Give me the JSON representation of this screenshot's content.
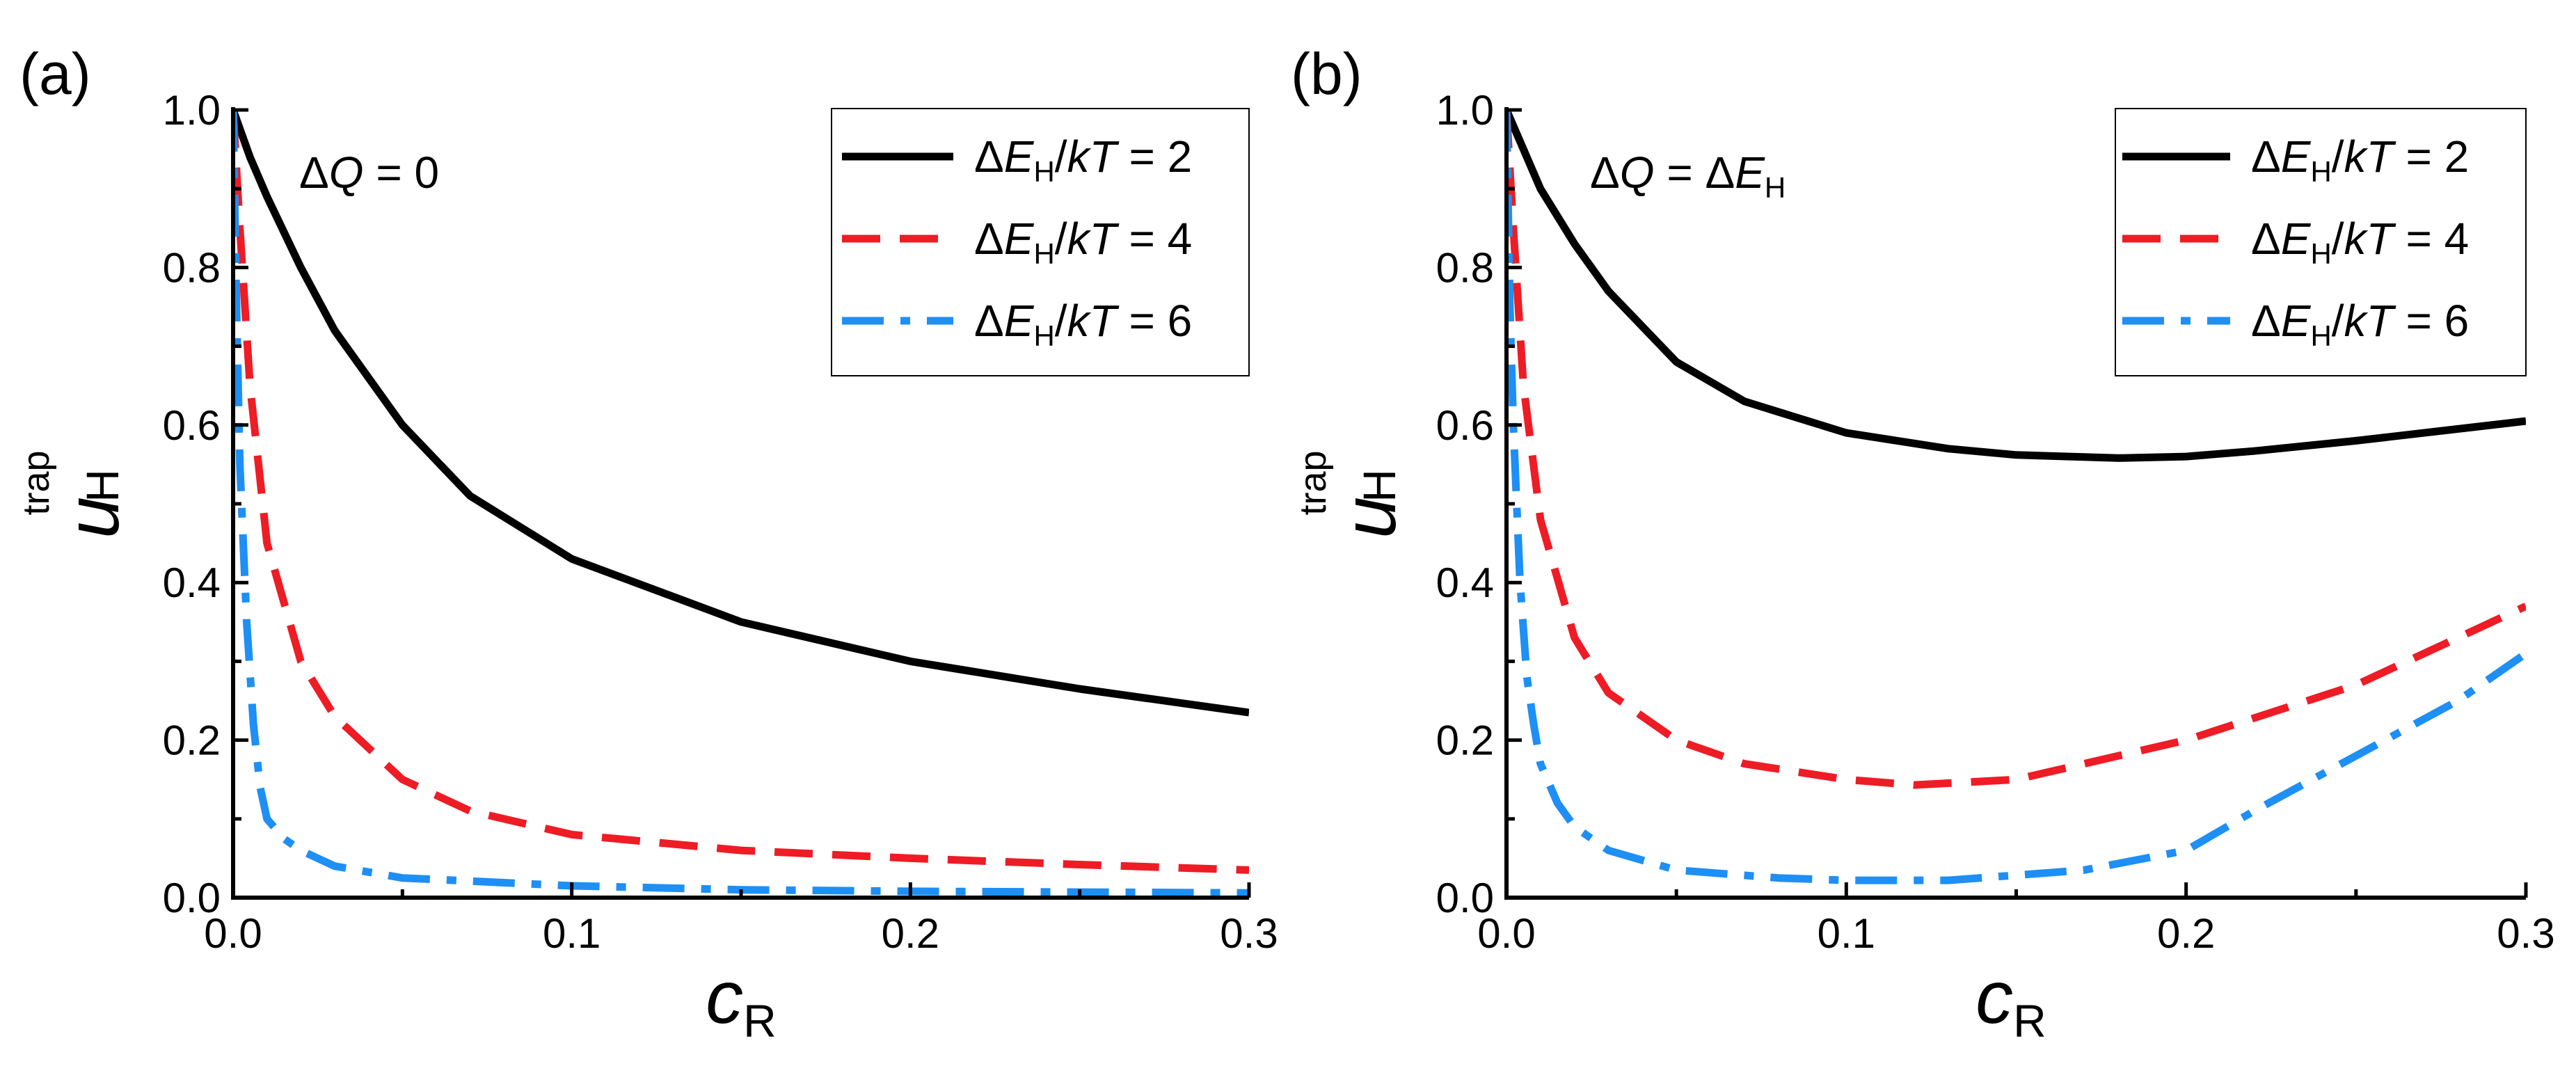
{
  "figure": {
    "y_axis": {
      "main": "u",
      "sub": "H",
      "sup": "trap"
    },
    "x_axis": {
      "main": "c",
      "sub": "R"
    }
  },
  "colors": {
    "black": "#000000",
    "red": "#ee1c25",
    "blue": "#1e8ff5"
  },
  "chart_data": [
    {
      "type": "line",
      "panel_label": "(a)",
      "annotation": {
        "prefix": "Δ",
        "q": "Q",
        "rest": " = 0"
      },
      "xlim": [
        0,
        0.3
      ],
      "ylim": [
        0,
        1.0
      ],
      "xticks": [
        "0.0",
        "0.1",
        "0.2",
        "0.3"
      ],
      "yticks": [
        "0.0",
        "0.2",
        "0.4",
        "0.6",
        "0.8",
        "1.0"
      ],
      "series": [
        {
          "name": "ΔE_H/kT = 2",
          "value": "2",
          "style": "solid",
          "color": "#000000",
          "x": [
            0,
            0.005,
            0.01,
            0.02,
            0.03,
            0.05,
            0.07,
            0.1,
            0.15,
            0.2,
            0.25,
            0.3
          ],
          "y": [
            1.0,
            0.94,
            0.89,
            0.8,
            0.72,
            0.6,
            0.51,
            0.43,
            0.35,
            0.3,
            0.265,
            0.235
          ]
        },
        {
          "name": "ΔE_H/kT = 4",
          "value": "4",
          "style": "dashed",
          "color": "#ee1c25",
          "x": [
            0,
            0.002,
            0.005,
            0.01,
            0.02,
            0.03,
            0.05,
            0.07,
            0.1,
            0.15,
            0.2,
            0.25,
            0.3
          ],
          "y": [
            1.0,
            0.85,
            0.65,
            0.45,
            0.3,
            0.23,
            0.15,
            0.11,
            0.08,
            0.06,
            0.05,
            0.042,
            0.035
          ]
        },
        {
          "name": "ΔE_H/kT = 6",
          "value": "6",
          "style": "dashdot",
          "color": "#1e8ff5",
          "x": [
            0,
            0.001,
            0.002,
            0.004,
            0.006,
            0.008,
            0.01,
            0.015,
            0.02,
            0.03,
            0.05,
            0.1,
            0.15,
            0.2,
            0.3
          ],
          "y": [
            1.0,
            0.75,
            0.55,
            0.35,
            0.22,
            0.14,
            0.1,
            0.075,
            0.06,
            0.04,
            0.025,
            0.015,
            0.01,
            0.008,
            0.006
          ]
        }
      ],
      "legend_labels": {
        "prefix": "Δ",
        "e": "E",
        "sub": "H",
        "slash": "/",
        "kt": "kT",
        "eq": " = "
      },
      "legend_position": "top-right"
    },
    {
      "type": "line",
      "panel_label": "(b)",
      "annotation": {
        "prefix": "Δ",
        "q": "Q",
        "rest": " = Δ",
        "e": "E",
        "sub": "H"
      },
      "xlim": [
        0,
        0.3
      ],
      "ylim": [
        0,
        1.0
      ],
      "xticks": [
        "0.0",
        "0.1",
        "0.2",
        "0.3"
      ],
      "yticks": [
        "0.0",
        "0.2",
        "0.4",
        "0.6",
        "0.8",
        "1.0"
      ],
      "series": [
        {
          "name": "ΔE_H/kT = 2",
          "value": "2",
          "style": "solid",
          "color": "#000000",
          "x": [
            0,
            0.005,
            0.01,
            0.02,
            0.03,
            0.05,
            0.07,
            0.1,
            0.13,
            0.15,
            0.18,
            0.2,
            0.22,
            0.25,
            0.3
          ],
          "y": [
            1.0,
            0.95,
            0.9,
            0.83,
            0.77,
            0.68,
            0.63,
            0.59,
            0.57,
            0.562,
            0.558,
            0.56,
            0.567,
            0.58,
            0.605
          ]
        },
        {
          "name": "ΔE_H/kT = 4",
          "value": "4",
          "style": "dashed",
          "color": "#ee1c25",
          "x": [
            0,
            0.002,
            0.005,
            0.01,
            0.02,
            0.03,
            0.05,
            0.07,
            0.1,
            0.12,
            0.15,
            0.2,
            0.25,
            0.3
          ],
          "y": [
            1.0,
            0.85,
            0.65,
            0.48,
            0.33,
            0.26,
            0.2,
            0.17,
            0.15,
            0.143,
            0.15,
            0.2,
            0.27,
            0.37
          ]
        },
        {
          "name": "ΔE_H/kT = 6",
          "value": "6",
          "style": "dashdot",
          "color": "#1e8ff5",
          "x": [
            0,
            0.001,
            0.002,
            0.004,
            0.006,
            0.008,
            0.01,
            0.015,
            0.02,
            0.03,
            0.05,
            0.08,
            0.1,
            0.13,
            0.17,
            0.2,
            0.22,
            0.25,
            0.28,
            0.3
          ],
          "y": [
            1.0,
            0.75,
            0.6,
            0.4,
            0.28,
            0.22,
            0.17,
            0.12,
            0.09,
            0.06,
            0.035,
            0.025,
            0.022,
            0.022,
            0.035,
            0.06,
            0.11,
            0.18,
            0.25,
            0.31
          ]
        }
      ],
      "legend_labels": {
        "prefix": "Δ",
        "e": "E",
        "sub": "H",
        "slash": "/",
        "kt": "kT",
        "eq": " = "
      },
      "legend_position": "top-right"
    }
  ]
}
